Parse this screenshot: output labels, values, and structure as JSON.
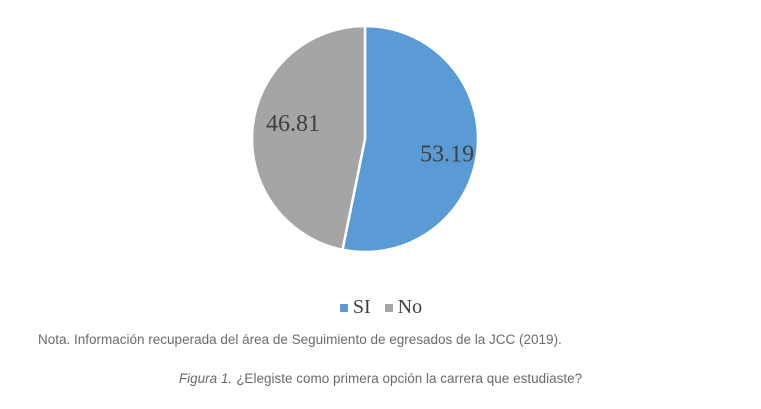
{
  "page": {
    "background": "#ffffff"
  },
  "chart_data": {
    "type": "pie",
    "title": "",
    "series": [
      {
        "label": "SI",
        "value": 53.19,
        "data_label": "53.19",
        "color": "#5B9BD5"
      },
      {
        "label": "No",
        "value": 46.81,
        "data_label": "46.81",
        "color": "#A5A5A5"
      }
    ],
    "start_angle_deg": 0,
    "direction": "clockwise",
    "slice_border_color": "#FFFFFF",
    "data_label_color": "#3F3F3F",
    "legend_position": "bottom",
    "legend_text_color": "#404040"
  },
  "note": "Nota. Información recuperada del área de Seguimiento de egresados de la JCC (2019).",
  "caption": {
    "label": "Figura 1.",
    "text": "¿Elegiste como primera opción la carrera que estudiaste?"
  }
}
